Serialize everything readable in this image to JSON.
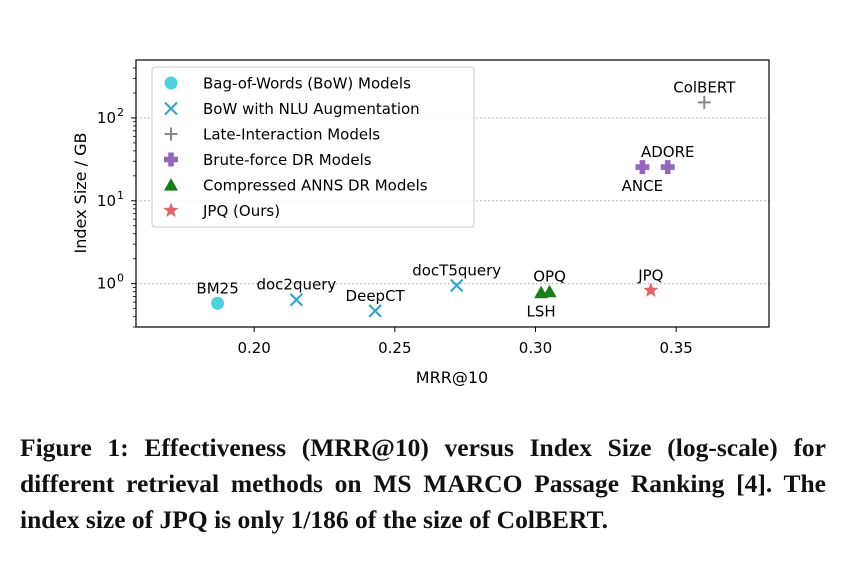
{
  "chart_data": {
    "type": "scatter",
    "title": "",
    "xlabel": "MRR@10",
    "ylabel": "Index Size / GB",
    "xlim": [
      0.158,
      0.383
    ],
    "ylim": [
      0.3,
      500
    ],
    "yscale": "log",
    "xticks": [
      {
        "value": 0.2,
        "label": "0.20"
      },
      {
        "value": 0.25,
        "label": "0.25"
      },
      {
        "value": 0.3,
        "label": "0.30"
      },
      {
        "value": 0.35,
        "label": "0.35"
      }
    ],
    "yticks": [
      {
        "value": 1,
        "base": "10",
        "exp": "0"
      },
      {
        "value": 10,
        "base": "10",
        "exp": "1"
      },
      {
        "value": 100,
        "base": "10",
        "exp": "2"
      }
    ],
    "grid": "horizontal dotted at major y ticks",
    "legend_position": "upper-left",
    "series": [
      {
        "name": "Bag-of-Words (BoW) Models",
        "marker": "circle",
        "color": "#4fd1dc",
        "points": [
          {
            "label": "BM25",
            "x": 0.187,
            "y": 0.58,
            "label_side": "above"
          }
        ]
      },
      {
        "name": "BoW with NLU Augmentation",
        "marker": "x",
        "color": "#3fa3c9",
        "points": [
          {
            "label": "doc2query",
            "x": 0.215,
            "y": 0.64,
            "label_side": "above"
          },
          {
            "label": "DeepCT",
            "x": 0.243,
            "y": 0.47,
            "label_side": "above"
          },
          {
            "label": "docT5query",
            "x": 0.272,
            "y": 0.95,
            "label_side": "above"
          }
        ]
      },
      {
        "name": "Late-Interaction Models",
        "marker": "plus",
        "color": "#888888",
        "points": [
          {
            "label": "ColBERT",
            "x": 0.36,
            "y": 154,
            "label_side": "above"
          }
        ]
      },
      {
        "name": "Brute-force DR Models",
        "marker": "plus-filled",
        "color": "#9467bd",
        "points": [
          {
            "label": "ANCE",
            "x": 0.338,
            "y": 25.5,
            "label_side": "below"
          },
          {
            "label": "ADORE",
            "x": 0.347,
            "y": 25.5,
            "label_side": "above"
          }
        ]
      },
      {
        "name": "Compressed ANNS DR Models",
        "marker": "triangle",
        "color": "#1a7f1a",
        "points": [
          {
            "label": "LSH",
            "x": 0.302,
            "y": 0.78,
            "label_side": "below"
          },
          {
            "label": "OPQ",
            "x": 0.305,
            "y": 0.8,
            "label_side": "above"
          }
        ]
      },
      {
        "name": "JPQ (Ours)",
        "marker": "star",
        "color": "#e06666",
        "points": [
          {
            "label": "JPQ",
            "x": 0.341,
            "y": 0.83,
            "label_side": "above"
          }
        ]
      }
    ]
  },
  "caption": "Figure 1: Effectiveness (MRR@10) versus Index Size (log-scale) for different retrieval methods on MS MARCO Passage Ranking [4]. The index size of JPQ is only 1/186 of the size of ColBERT."
}
